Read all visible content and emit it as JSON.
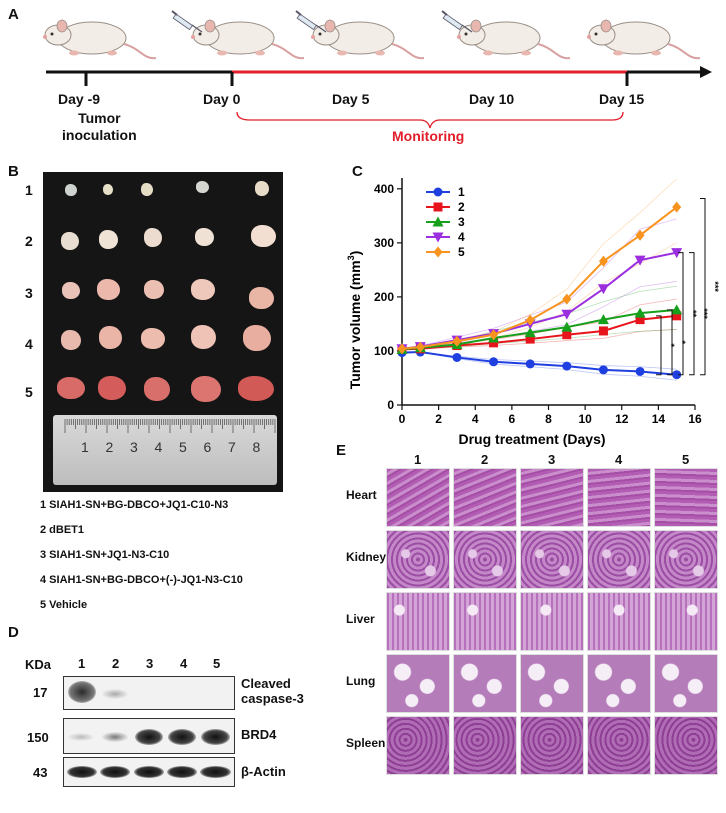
{
  "panels": {
    "a": "A",
    "b": "B",
    "c": "C",
    "d": "D",
    "e": "E"
  },
  "timeline": {
    "days": [
      "Day -9",
      "Day 0",
      "Day 5",
      "Day 10",
      "Day 15"
    ],
    "inoculation": [
      "Tumor",
      "inoculation"
    ],
    "monitoring": "Monitoring"
  },
  "photo": {
    "row_labels": [
      "1",
      "2",
      "3",
      "4",
      "5"
    ],
    "ruler_numbers": [
      "1",
      "2",
      "3",
      "4",
      "5",
      "6",
      "7",
      "8"
    ]
  },
  "groups": [
    "1 SIAH1-SN+BG-DBCO+JQ1-C10-N3",
    "2 dBET1",
    "3 SIAH1-SN+JQ1-N3-C10",
    "4 SIAH1-SN+BG-DBCO+(-)-JQ1-N3-C10",
    "5 Vehicle"
  ],
  "blot": {
    "kda_label": "KDa",
    "lanes": [
      "1",
      "2",
      "3",
      "4",
      "5"
    ],
    "rows": [
      {
        "kda": "17",
        "label": [
          "Cleaved",
          "caspase-3"
        ]
      },
      {
        "kda": "150",
        "label": [
          "BRD4"
        ]
      },
      {
        "kda": "43",
        "label": [
          "β-Actin"
        ]
      }
    ]
  },
  "histology": {
    "columns": [
      "1",
      "2",
      "3",
      "4",
      "5"
    ],
    "tissues": [
      "Heart",
      "Kidney",
      "Liver",
      "Lung",
      "Spleen"
    ]
  },
  "colors": {
    "red": "#e11e2a",
    "timeline": "#111111"
  },
  "chart_data": {
    "type": "line",
    "xlabel": "Drug treatment (Days)",
    "ylabel": "Tumor volume (mm3)",
    "xlim": [
      0,
      16
    ],
    "ylim": [
      0,
      420
    ],
    "xticks": [
      0,
      2,
      4,
      6,
      8,
      10,
      12,
      14,
      16
    ],
    "yticks": [
      0,
      100,
      200,
      300,
      400
    ],
    "x": [
      0,
      1,
      3,
      5,
      7,
      9,
      11,
      13,
      15
    ],
    "legend_position": "top-left",
    "series": [
      {
        "name": "1",
        "color": "#1f3fe0",
        "marker": "circle",
        "values": [
          97,
          98,
          88,
          80,
          76,
          72,
          65,
          62,
          56
        ]
      },
      {
        "name": "2",
        "color": "#e8141c",
        "marker": "square",
        "values": [
          103,
          104,
          110,
          115,
          122,
          130,
          137,
          158,
          165
        ]
      },
      {
        "name": "3",
        "color": "#17a01c",
        "marker": "triangle-up",
        "values": [
          103,
          106,
          112,
          124,
          134,
          144,
          158,
          170,
          176
        ]
      },
      {
        "name": "4",
        "color": "#9b2fe0",
        "marker": "triangle-down",
        "values": [
          104,
          108,
          120,
          132,
          150,
          168,
          215,
          268,
          282
        ]
      },
      {
        "name": "5",
        "color": "#f7931e",
        "marker": "diamond",
        "values": [
          104,
          107,
          118,
          130,
          157,
          196,
          266,
          314,
          366
        ]
      }
    ],
    "significance": [
      "*",
      "*",
      "**",
      "***",
      "***"
    ]
  }
}
